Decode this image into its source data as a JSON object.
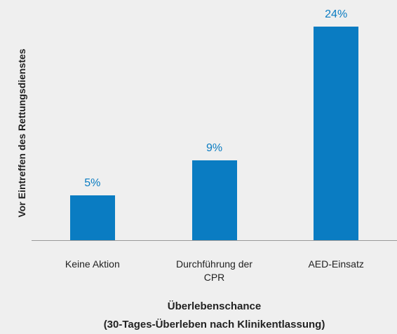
{
  "chart_data": {
    "type": "bar",
    "y_axis_label": "Vor Eintreffen des Rettungsdienstes",
    "x_axis_label": [
      "Überlebenschance",
      "(30-Tages-Überleben nach Klinikentlassung)"
    ],
    "categories": [
      "Keine Aktion",
      "Durchführung der CPR",
      "AED-Einsatz"
    ],
    "values": [
      5,
      9,
      24
    ],
    "value_labels": [
      "5%",
      "9%",
      "24%"
    ],
    "color": "#0a7cc2"
  }
}
